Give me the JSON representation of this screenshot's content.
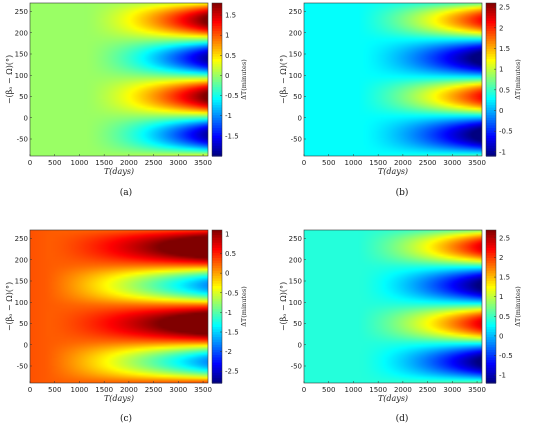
{
  "chart_data": [
    {
      "type": "heatmap",
      "panel_label": "(a)",
      "xlabel": "T(days)",
      "ylabel": "−(βₒ − Ω)(°)",
      "colorbar_label": "ΔT(minutes)",
      "xlim": [
        0,
        3600
      ],
      "ylim": [
        -90,
        270
      ],
      "x_ticks": [
        0,
        500,
        1000,
        1500,
        2000,
        2500,
        3000,
        3500
      ],
      "y_ticks": [
        -50,
        0,
        50,
        100,
        150,
        200,
        250
      ],
      "clim": [
        -2,
        1.8
      ],
      "colorbar_ticks": [
        "1.5",
        "1",
        "0.5",
        "0",
        "-0.5",
        "-1",
        "-1.5"
      ],
      "colorbar_tick_values": [
        1.5,
        1,
        0.5,
        0,
        -0.5,
        -1,
        -1.5
      ],
      "colormap": "jet",
      "model": {
        "offset": 0.0,
        "amplitude": 1.9,
        "onset_days": 1100,
        "power": 1.6
      }
    },
    {
      "type": "heatmap",
      "panel_label": "(b)",
      "xlabel": "T(days)",
      "ylabel": "−(βₒ − Ω)(°)",
      "colorbar_label": "ΔT(minutes)",
      "xlim": [
        0,
        3600
      ],
      "ylim": [
        -90,
        270
      ],
      "x_ticks": [
        0,
        500,
        1000,
        1500,
        2000,
        2500,
        3000,
        3500
      ],
      "y_ticks": [
        -50,
        0,
        50,
        100,
        150,
        200,
        250
      ],
      "clim": [
        -1.1,
        2.6
      ],
      "colorbar_ticks": [
        "2.5",
        "2",
        "1.5",
        "1",
        "0.5",
        "0",
        "-0.5",
        "-1"
      ],
      "colorbar_tick_values": [
        2.5,
        2,
        1.5,
        1,
        0.5,
        0,
        -0.5,
        -1
      ],
      "colormap": "jet",
      "model": {
        "offset": 0.3,
        "amplitude": 1.6,
        "onset_days": 1100,
        "power": 1.6,
        "skew": 0.5
      }
    },
    {
      "type": "heatmap",
      "panel_label": "(c)",
      "xlabel": "T(days)",
      "ylabel": "−(βₒ − Ω)(°)",
      "colorbar_label": "ΔT(minutes)",
      "xlim": [
        0,
        3600
      ],
      "ylim": [
        -90,
        270
      ],
      "x_ticks": [
        0,
        500,
        1000,
        1500,
        2000,
        2500,
        3000,
        3500
      ],
      "y_ticks": [
        -50,
        0,
        50,
        100,
        150,
        200,
        250
      ],
      "clim": [
        -2.8,
        1.1
      ],
      "colorbar_ticks": [
        "1",
        "0.5",
        "0",
        "-0.5",
        "-1",
        "-1.5",
        "-2",
        "-2.5"
      ],
      "colorbar_tick_values": [
        1,
        0.5,
        0,
        -0.5,
        -1,
        -1.5,
        -2,
        -2.5
      ],
      "colormap": "jet",
      "model": {
        "offset": 0.3,
        "amplitude": 1.9,
        "onset_days": 300,
        "power": 1.3,
        "skew": -0.6
      }
    },
    {
      "type": "heatmap",
      "panel_label": "(d)",
      "xlabel": "T(days)",
      "ylabel": "−(βₒ − Ω)(°)",
      "colorbar_label": "ΔT(minutes)",
      "xlim": [
        0,
        3600
      ],
      "ylim": [
        -90,
        270
      ],
      "x_ticks": [
        0,
        500,
        1000,
        1500,
        2000,
        2500,
        3000,
        3500
      ],
      "y_ticks": [
        -50,
        0,
        50,
        100,
        150,
        200,
        250
      ],
      "clim": [
        -1.2,
        2.7
      ],
      "colorbar_ticks": [
        "2.5",
        "2",
        "1.5",
        "1",
        "0.5",
        "0",
        "-0.5",
        "-1"
      ],
      "colorbar_tick_values": [
        2.5,
        2,
        1.5,
        1,
        0.5,
        0,
        -0.5,
        -1
      ],
      "colormap": "jet",
      "model": {
        "offset": 0.4,
        "amplitude": 1.7,
        "onset_days": 1100,
        "power": 1.6,
        "skew": 0.5
      }
    }
  ]
}
